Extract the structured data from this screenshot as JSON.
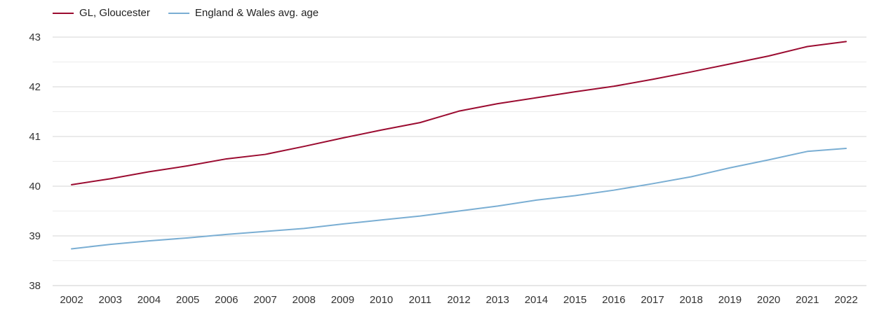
{
  "chart_data": {
    "type": "line",
    "title": "",
    "xlabel": "",
    "ylabel": "",
    "categories": [
      "2002",
      "2003",
      "2004",
      "2005",
      "2006",
      "2007",
      "2008",
      "2009",
      "2010",
      "2011",
      "2012",
      "2013",
      "2014",
      "2015",
      "2016",
      "2017",
      "2018",
      "2019",
      "2020",
      "2021",
      "2022"
    ],
    "ylim": [
      38,
      43
    ],
    "yticks": [
      38,
      39,
      40,
      41,
      42,
      43
    ],
    "grid": true,
    "legend_position": "top-left",
    "series": [
      {
        "name": "GL, Gloucester",
        "color": "#9b0b30",
        "values": [
          40.03,
          40.15,
          40.29,
          40.41,
          40.55,
          40.64,
          40.8,
          40.97,
          41.13,
          41.28,
          41.51,
          41.66,
          41.78,
          41.9,
          42.01,
          42.15,
          42.3,
          42.46,
          42.62,
          42.81,
          42.91
        ]
      },
      {
        "name": "England & Wales avg. age",
        "color": "#7aaed3",
        "values": [
          38.74,
          38.83,
          38.9,
          38.96,
          39.03,
          39.09,
          39.15,
          39.24,
          39.32,
          39.4,
          39.5,
          39.6,
          39.72,
          39.81,
          39.92,
          40.05,
          40.19,
          40.37,
          40.53,
          40.7,
          40.76
        ]
      }
    ]
  }
}
